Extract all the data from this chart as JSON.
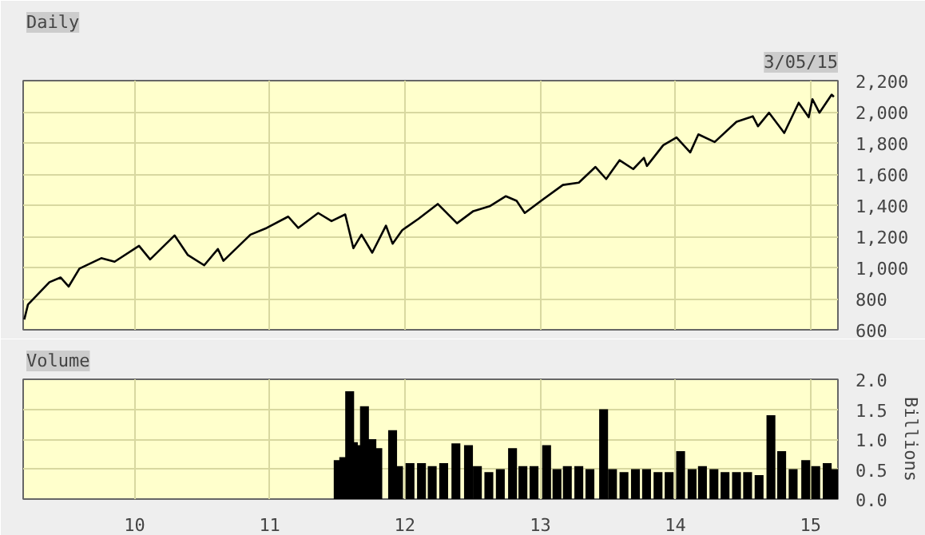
{
  "chart_data": [
    {
      "type": "line",
      "title": "Daily",
      "annotations": [
        "3/05/15"
      ],
      "grid": true,
      "tick_labels": "y",
      "xlim": [
        "2009-03-06",
        "2015-03-16"
      ],
      "xticks": [
        {
          "value": "2010-01-01",
          "label": null
        },
        {
          "value": "2011-01-01",
          "label": null
        },
        {
          "value": "2012-01-01",
          "label": null
        },
        {
          "value": "2013-01-01",
          "label": null
        },
        {
          "value": "2014-01-01",
          "label": null
        },
        {
          "value": "2015-01-01",
          "label": null
        }
      ],
      "ylim": [
        600,
        2200
      ],
      "yticks": [
        600,
        800,
        {
          "value": 1000,
          "label": "1,000"
        },
        {
          "value": 1200,
          "label": "1,200"
        },
        {
          "value": 1400,
          "label": "1,400"
        },
        {
          "value": 1600,
          "label": "1,600"
        },
        {
          "value": 1800,
          "label": "1,800"
        },
        {
          "value": 2000,
          "label": "2,000"
        },
        {
          "value": 2200,
          "label": "2,200"
        }
      ],
      "x": [
        "2009-03-09",
        "2009-03-19",
        "2009-04-17",
        "2009-05-16",
        "2009-06-15",
        "2009-07-07",
        "2009-08-05",
        "2009-10-03",
        "2009-11-08",
        "2010-01-13",
        "2010-02-12",
        "2010-04-19",
        "2010-05-25",
        "2010-07-08",
        "2010-08-14",
        "2010-08-29",
        "2010-11-10",
        "2010-12-24",
        "2011-02-20",
        "2011-03-19",
        "2011-05-12",
        "2011-06-17",
        "2011-07-24",
        "2011-08-15",
        "2011-09-06",
        "2011-10-05",
        "2011-11-11",
        "2011-11-29",
        "2011-12-25",
        "2012-02-07",
        "2012-03-30",
        "2012-05-21",
        "2012-07-04",
        "2012-08-17",
        "2012-09-30",
        "2012-10-29",
        "2012-11-20",
        "2013-01-03",
        "2013-03-03",
        "2013-04-15",
        "2013-05-30",
        "2013-06-28",
        "2013-08-03",
        "2013-09-09",
        "2013-10-08",
        "2013-10-16",
        "2013-11-29",
        "2014-01-04",
        "2014-02-10",
        "2014-03-04",
        "2014-04-17",
        "2014-06-15",
        "2014-07-29",
        "2014-08-12",
        "2014-09-11",
        "2014-10-22",
        "2014-11-30",
        "2014-12-27",
        "2015-01-06",
        "2015-01-25",
        "2015-02-27",
        "2015-03-05"
      ],
      "series": [
        {
          "color": "#000000",
          "values": [
            666,
            762,
            834,
            906,
            936,
            878,
            993,
            1060,
            1037,
            1139,
            1052,
            1206,
            1080,
            1014,
            1119,
            1043,
            1211,
            1254,
            1327,
            1254,
            1350,
            1298,
            1341,
            1124,
            1211,
            1095,
            1269,
            1153,
            1240,
            1313,
            1408,
            1284,
            1362,
            1393,
            1458,
            1428,
            1350,
            1428,
            1530,
            1545,
            1646,
            1568,
            1689,
            1632,
            1704,
            1652,
            1785,
            1835,
            1739,
            1855,
            1806,
            1936,
            1971,
            1907,
            1994,
            1864,
            2058,
            1965,
            2081,
            1994,
            2110,
            2096
          ]
        }
      ]
    },
    {
      "type": "bar",
      "title": "Volume",
      "ylabel": "Billions",
      "grid": true,
      "xlim": [
        "2009-03-06",
        "2015-03-16"
      ],
      "xticks": [
        {
          "value": "2010-01-01",
          "label": "10"
        },
        {
          "value": "2011-01-01",
          "label": "11"
        },
        {
          "value": "2012-01-01",
          "label": "12"
        },
        {
          "value": "2013-01-01",
          "label": "13"
        },
        {
          "value": "2014-01-01",
          "label": "14"
        },
        {
          "value": "2015-01-01",
          "label": "15"
        }
      ],
      "ylim": [
        0,
        2
      ],
      "yticks": [
        {
          "value": 0,
          "label": "0.0"
        },
        {
          "value": 0.5,
          "label": "0.5"
        },
        {
          "value": 1,
          "label": "1.0"
        },
        {
          "value": 1.5,
          "label": "1.5"
        },
        {
          "value": 2,
          "label": "2.0"
        }
      ],
      "x": [
        "2011-07-05",
        "2011-07-20",
        "2011-08-05",
        "2011-08-15",
        "2011-09-01",
        "2011-09-14",
        "2011-10-04",
        "2011-10-20",
        "2011-11-29",
        "2011-12-15",
        "2012-01-15",
        "2012-02-15",
        "2012-03-15",
        "2012-04-15",
        "2012-05-18",
        "2012-06-21",
        "2012-07-15",
        "2012-08-15",
        "2012-09-15",
        "2012-10-18",
        "2012-11-15",
        "2012-12-15",
        "2013-01-18",
        "2013-02-15",
        "2013-03-15",
        "2013-04-15",
        "2013-05-15",
        "2013-06-21",
        "2013-07-15",
        "2013-08-15",
        "2013-09-15",
        "2013-10-15",
        "2013-11-15",
        "2013-12-15",
        "2014-01-15",
        "2014-02-15",
        "2014-03-15",
        "2014-04-15",
        "2014-05-15",
        "2014-06-15",
        "2014-07-15",
        "2014-08-15",
        "2014-09-16",
        "2014-10-15",
        "2014-11-15",
        "2014-12-19",
        "2015-01-15",
        "2015-02-15",
        "2015-03-05"
      ],
      "series": [
        {
          "color": "#000000",
          "values": [
            0.65,
            0.7,
            1.8,
            0.95,
            0.9,
            1.55,
            1.0,
            0.85,
            1.15,
            0.55,
            0.6,
            0.6,
            0.55,
            0.6,
            0.93,
            0.9,
            0.55,
            0.45,
            0.5,
            0.85,
            0.55,
            0.55,
            0.9,
            0.5,
            0.55,
            0.55,
            0.5,
            1.5,
            0.5,
            0.45,
            0.5,
            0.5,
            0.45,
            0.45,
            0.8,
            0.5,
            0.55,
            0.5,
            0.45,
            0.45,
            0.45,
            0.4,
            1.4,
            0.8,
            0.5,
            0.65,
            0.55,
            0.6,
            0.5
          ]
        }
      ]
    }
  ]
}
